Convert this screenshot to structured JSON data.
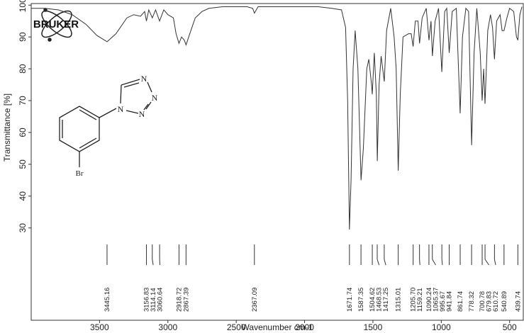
{
  "chart_data": {
    "type": "line",
    "x_label": "Wavenumber cm-1",
    "y_label": "Transmittance [%]",
    "xlim": [
      4000,
      400
    ],
    "ylim": [
      1,
      100.5
    ],
    "xticks": [
      3500,
      3000,
      2500,
      2000,
      1500,
      1000,
      500
    ],
    "yticks": [
      30,
      40,
      50,
      60,
      70,
      80,
      90,
      100
    ],
    "color": "#333333",
    "x": [
      4000,
      3900,
      3800,
      3700,
      3600,
      3520,
      3445,
      3380,
      3300,
      3250,
      3200,
      3170,
      3157,
      3140,
      3114,
      3090,
      3061,
      3030,
      3000,
      2960,
      2940,
      2919,
      2900,
      2880,
      2867,
      2840,
      2800,
      2750,
      2700,
      2600,
      2500,
      2420,
      2380,
      2367,
      2340,
      2300,
      2200,
      2000,
      1900,
      1800,
      1730,
      1700,
      1685,
      1672,
      1660,
      1645,
      1630,
      1610,
      1587,
      1570,
      1545,
      1530,
      1510,
      1505,
      1490,
      1475,
      1468,
      1455,
      1440,
      1417,
      1400,
      1370,
      1345,
      1330,
      1315,
      1300,
      1280,
      1240,
      1220,
      1206,
      1190,
      1170,
      1159,
      1140,
      1110,
      1090,
      1075,
      1065,
      1045,
      1020,
      996,
      975,
      960,
      942,
      920,
      890,
      862,
      845,
      820,
      800,
      778,
      760,
      740,
      715,
      701,
      690,
      680,
      660,
      640,
      625,
      611,
      595,
      570,
      555,
      541,
      520,
      500,
      470,
      450,
      440,
      425,
      410
    ],
    "values": [
      99,
      99,
      98.5,
      97,
      94,
      90.5,
      88.5,
      91,
      96,
      97,
      96.5,
      98,
      95,
      98.5,
      96,
      98.5,
      95,
      98.5,
      97,
      96,
      91,
      88,
      90,
      89,
      87.5,
      91,
      96,
      98,
      99,
      99.5,
      99.5,
      99.5,
      99,
      97.5,
      99.5,
      99.5,
      99.5,
      99.5,
      99.5,
      99,
      98.5,
      93,
      70,
      29.5,
      45,
      80,
      92,
      80,
      45,
      55,
      80,
      83,
      75,
      72,
      85,
      72,
      51,
      75,
      84,
      76,
      92,
      99,
      90,
      80,
      48,
      72,
      90,
      91,
      91,
      87,
      95,
      95,
      88,
      96,
      99,
      89,
      95,
      84,
      95,
      99,
      79,
      98,
      99,
      85,
      98,
      99,
      66,
      90,
      99,
      98,
      56,
      85,
      99,
      85,
      70,
      80,
      69,
      92,
      97,
      93,
      83,
      95,
      97,
      92,
      92,
      96,
      99,
      98,
      90,
      89,
      97,
      99.5
    ],
    "peaks": {
      "values": [
        3445.16,
        3156.83,
        3114.14,
        3060.64,
        2918.72,
        2867.39,
        2367.09,
        1671.74,
        1587.35,
        1504.62,
        1468.53,
        1417.25,
        1315.01,
        1205.7,
        1159.21,
        1090.24,
        1065.37,
        995.67,
        941.84,
        861.74,
        778.32,
        700.78,
        679.83,
        610.72,
        540.89,
        439.74
      ],
      "value_labels": [
        "3445.16",
        "3156.83",
        "3114.14",
        "3060.64",
        "2918.72",
        "2867.39",
        "2367.09",
        "1671.74",
        "1587.35",
        "1504.62",
        "1468.53",
        "1417.25",
        "1315.01",
        "1205.70",
        "1159.21",
        "1090.24",
        "1065.37",
        "995.67",
        "941.84",
        "861.74",
        "778.32",
        "700.78",
        "679.83",
        "610.72",
        "540.89",
        "439.74"
      ]
    },
    "logo": "BRUKER",
    "atoms": [
      "N",
      "N",
      "N",
      "N",
      "Br"
    ]
  }
}
